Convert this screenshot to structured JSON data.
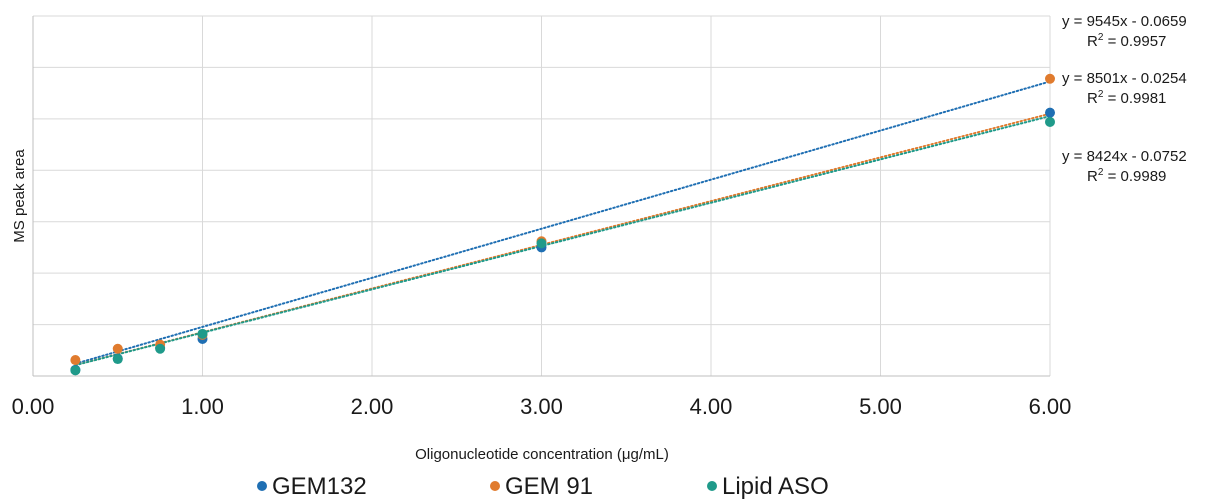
{
  "chart_data": {
    "type": "scatter",
    "xlabel": "Oligonucleotide concentration (μg/mL)",
    "ylabel": "MS peak area",
    "xlim": [
      0,
      6
    ],
    "ylim": [
      0,
      70000
    ],
    "y_gridlines": [
      10000,
      20000,
      30000,
      40000,
      50000,
      60000,
      70000
    ],
    "x_ticks": [
      {
        "value": 0,
        "label": "0.00"
      },
      {
        "value": 1,
        "label": "1.00"
      },
      {
        "value": 2,
        "label": "2.00"
      },
      {
        "value": 3,
        "label": "3.00"
      },
      {
        "value": 4,
        "label": "4.00"
      },
      {
        "value": 5,
        "label": "5.00"
      },
      {
        "value": 6,
        "label": "6.00"
      }
    ],
    "grid": true,
    "legend_position": "bottom",
    "series": [
      {
        "name": "GEM132",
        "color": "#1f6fb3",
        "x": [
          0.25,
          0.5,
          0.75,
          1.0,
          3.0,
          6.0
        ],
        "y": [
          1200,
          3400,
          5500,
          7200,
          25000,
          51200
        ],
        "trendline": {
          "slope": 9545,
          "intercept": -0.0659
        },
        "equation": "y = 9545x - 0.0659",
        "r2_prefix": "R",
        "r2_sup": "2",
        "r2_value": " = 0.9957"
      },
      {
        "name": "GEM 91",
        "color": "#e07b2e",
        "x": [
          0.25,
          0.5,
          0.75,
          1.0,
          3.0,
          6.0
        ],
        "y": [
          3100,
          5300,
          6100,
          8000,
          26200,
          57800
        ],
        "trendline": {
          "slope": 8501,
          "intercept": -0.0254
        },
        "equation": "y = 8501x - 0.0254",
        "r2_prefix": "R",
        "r2_sup": "2",
        "r2_value": " = 0.9981"
      },
      {
        "name": "Lipid ASO",
        "color": "#1f9a8a",
        "x": [
          0.25,
          0.5,
          0.75,
          1.0,
          3.0,
          6.0
        ],
        "y": [
          1100,
          3300,
          5300,
          8200,
          25800,
          49400
        ],
        "trendline": {
          "slope": 8424,
          "intercept": -0.0752
        },
        "equation": "y = 8424x - 0.0752",
        "r2_prefix": "R",
        "r2_sup": "2",
        "r2_value": " = 0.9989"
      }
    ]
  }
}
